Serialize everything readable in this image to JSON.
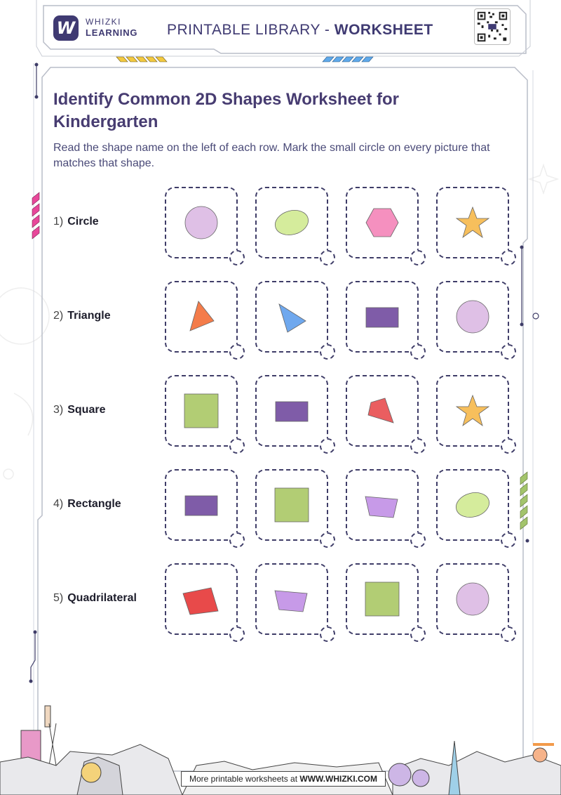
{
  "header": {
    "brand_line1": "WHIZKI",
    "brand_line2": "LEARNING",
    "title_prefix": "PRINTABLE LIBRARY - ",
    "title_strong": "WORKSHEET"
  },
  "worksheet": {
    "title": "Identify Common 2D Shapes Worksheet for Kindergarten",
    "instructions": "Read the shape name on the left of each row. Mark the small circle on every picture that matches that shape.",
    "rows": [
      {
        "number": "1)",
        "label": "Circle",
        "options": [
          {
            "shape": "circle",
            "color": "#dfc0e6"
          },
          {
            "shape": "ellipse",
            "color": "#d5ec9c"
          },
          {
            "shape": "hexagon",
            "color": "#f590bf"
          },
          {
            "shape": "star",
            "color": "#f7bf5c"
          }
        ]
      },
      {
        "number": "2)",
        "label": "Triangle",
        "options": [
          {
            "shape": "triangle-left",
            "color": "#f47c4a"
          },
          {
            "shape": "triangle-right",
            "color": "#6fa8ee"
          },
          {
            "shape": "rectangle",
            "color": "#7f5ca8"
          },
          {
            "shape": "circle",
            "color": "#dfc0e6"
          }
        ]
      },
      {
        "number": "3)",
        "label": "Square",
        "options": [
          {
            "shape": "square",
            "color": "#b2cd74"
          },
          {
            "shape": "rectangle",
            "color": "#7f5ca8"
          },
          {
            "shape": "kite",
            "color": "#ea5e60"
          },
          {
            "shape": "star",
            "color": "#f7bf5c"
          }
        ]
      },
      {
        "number": "4)",
        "label": "Rectangle",
        "options": [
          {
            "shape": "rectangle",
            "color": "#7f5ca8"
          },
          {
            "shape": "square",
            "color": "#b2cd74"
          },
          {
            "shape": "trapezoid",
            "color": "#c79ae8"
          },
          {
            "shape": "ellipse",
            "color": "#d5ec9c"
          }
        ]
      },
      {
        "number": "5)",
        "label": "Quadrilateral",
        "options": [
          {
            "shape": "quad-red",
            "color": "#e84a4a"
          },
          {
            "shape": "trapezoid",
            "color": "#c79ae8"
          },
          {
            "shape": "square",
            "color": "#b2cd74"
          },
          {
            "shape": "circle",
            "color": "#dfc0e6"
          }
        ]
      }
    ]
  },
  "footer": {
    "prefix": "More printable worksheets at ",
    "site": "WWW.WHIZKI.COM"
  },
  "colors": {
    "title": "#473c71",
    "brand": "#3f3a72",
    "dash": "#3f3d68",
    "frame": "#b9bdc8",
    "stripe_yellow": "#f3c93f",
    "stripe_blue": "#5fa9ea",
    "stripe_pink": "#e8479a",
    "stripe_green": "#a3c46c"
  }
}
